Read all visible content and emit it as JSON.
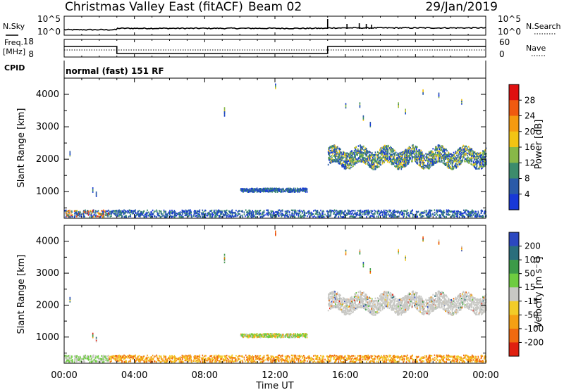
{
  "header": {
    "title": "Christmas Valley East (fitACF)",
    "beam": "Beam 02",
    "date": "29/Jan/2019",
    "mode": "normal (fast) 151 RF"
  },
  "strip_labels": {
    "nsky": "N.Sky",
    "nsky_ticks": [
      "10^5",
      "10^0"
    ],
    "nsearch": "N.Search",
    "nsearch_ticks": [
      "10^5",
      "10^0"
    ],
    "freq": "Freq.",
    "freq_unit": "[MHz]",
    "freq_ticks": [
      "18",
      "8"
    ],
    "nave": "Nave",
    "nave_ticks": [
      "60",
      "0"
    ],
    "cpid": "CPID"
  },
  "panels": [
    {
      "ylabel": "Slant Range [km]",
      "yticks": [
        "4000",
        "3000",
        "2000",
        "1000"
      ],
      "colorbar": {
        "label": "Power [dB]",
        "ticks": [
          "28",
          "24",
          "20",
          "16",
          "12",
          "8",
          "4"
        ],
        "colors": [
          "#e01010",
          "#f05a10",
          "#f59a10",
          "#f2c414",
          "#88b848",
          "#3c8c6c",
          "#2a5aa8",
          "#1838d8"
        ]
      }
    },
    {
      "ylabel": "Slant Range [km]",
      "yticks": [
        "4000",
        "3000",
        "2000",
        "1000"
      ],
      "colorbar": {
        "label": "Velocity [m s⁻¹]",
        "ticks": [
          "200",
          "100",
          "50",
          "15",
          "-15",
          "-50",
          "-100",
          "-200"
        ],
        "colors": [
          "#2c48c0",
          "#2a6e7c",
          "#3c9a48",
          "#6ecc40",
          "#c8c8c4",
          "#f2cc28",
          "#f5a014",
          "#f06a10",
          "#e02010"
        ]
      }
    }
  ],
  "xaxis": {
    "label": "Time UT",
    "ticks": [
      "00:00",
      "04:00",
      "08:00",
      "12:00",
      "16:00",
      "20:00",
      "00:00"
    ]
  },
  "chart_data": {
    "type": "heatmap",
    "title": "Christmas Valley East (fitACF)",
    "x_range_hours": [
      0,
      24
    ],
    "y_range_km": [
      180,
      4500
    ],
    "frequency_mhz_segments": [
      {
        "start": "00:00",
        "end": "03:00",
        "value": 14
      },
      {
        "start": "03:00",
        "end": "15:00",
        "value": 10
      },
      {
        "start": "15:00",
        "end": "24:00",
        "value": 14
      }
    ],
    "scatter_regions": [
      {
        "name": "near-range ground scatter",
        "t_start": 0.0,
        "t_end": 24.0,
        "r_min": 200,
        "r_max": 420
      },
      {
        "name": "mid-range patch",
        "t_start": 10.0,
        "t_end": 13.8,
        "r_min": 980,
        "r_max": 1090
      },
      {
        "name": "far-range band",
        "t_start": 15.0,
        "t_end": 24.0,
        "r_min": 1700,
        "r_max": 2400
      }
    ]
  }
}
